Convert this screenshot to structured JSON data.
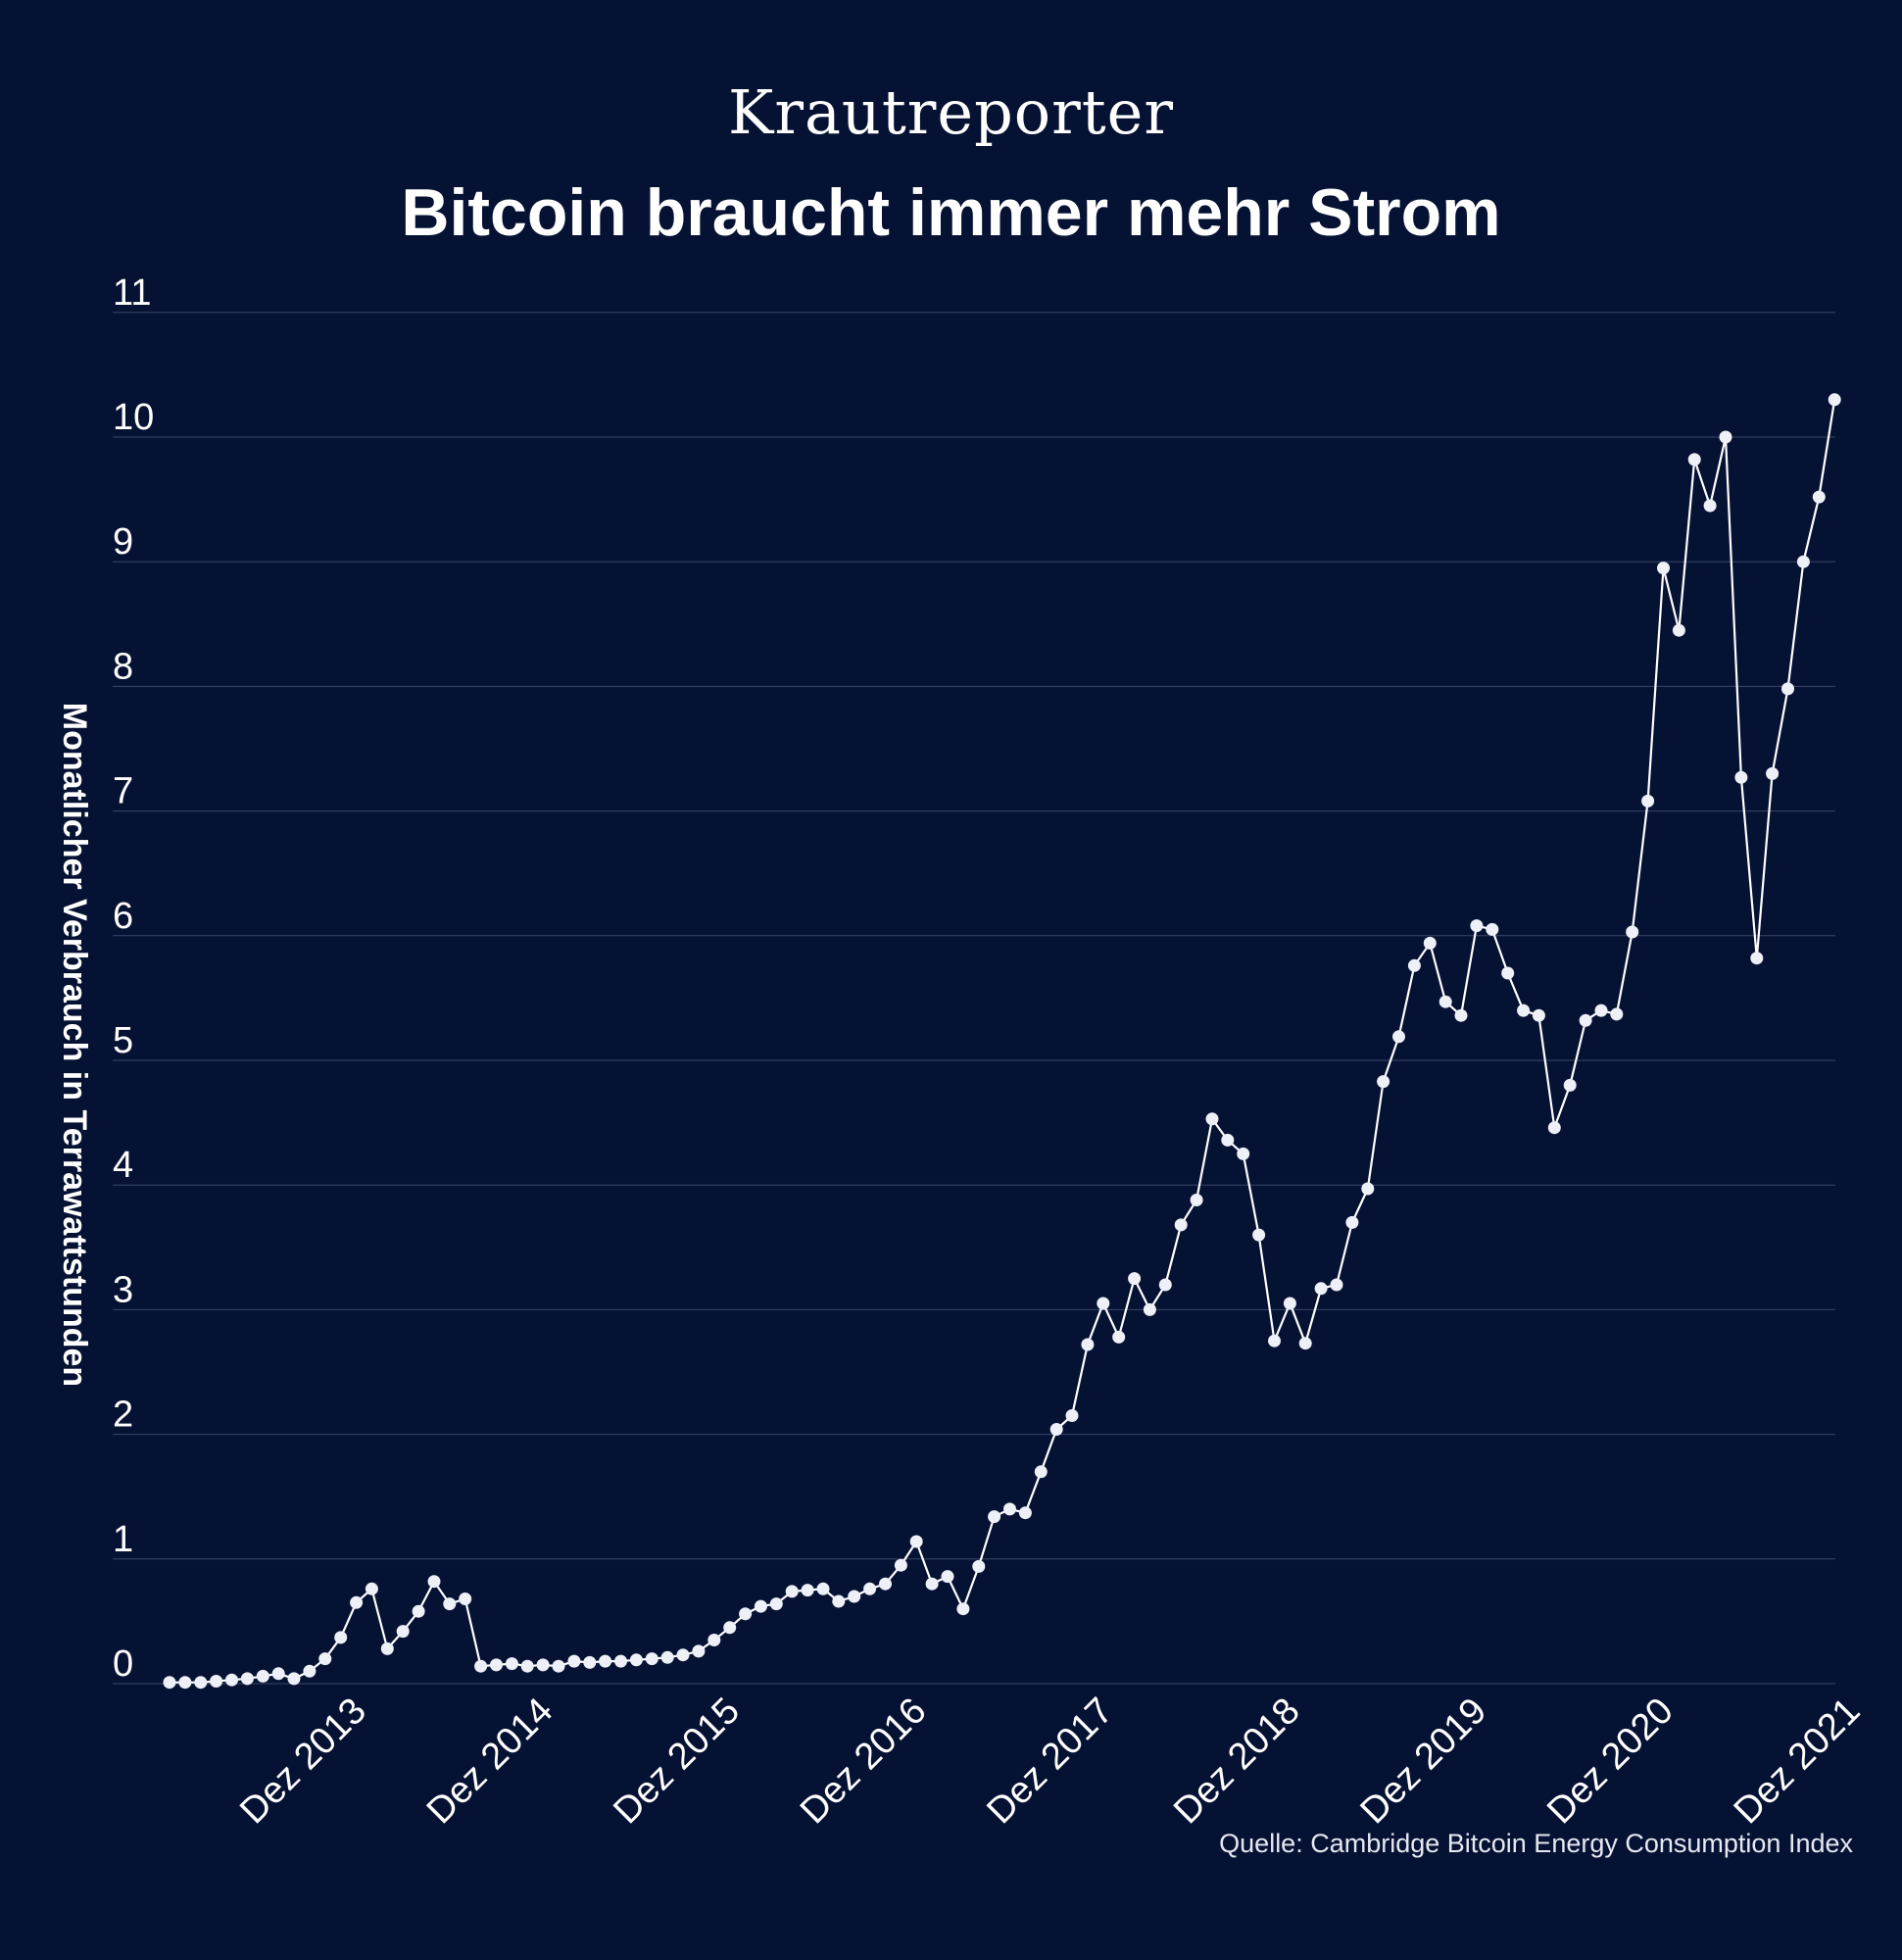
{
  "header": {
    "brand": "Krautreporter",
    "title": "Bitcoin braucht immer mehr Strom"
  },
  "footer": {
    "source": "Quelle: Cambridge Bitcoin Energy Consumption Index"
  },
  "colors": {
    "background": "#061233",
    "line": "#ffffff",
    "grid": "#3a4468"
  },
  "chart_data": {
    "type": "line",
    "title": "Bitcoin braucht immer mehr Strom",
    "xlabel": "",
    "ylabel": "Monatlicher Verbrauch in Terrawattstunden",
    "ylim": [
      0,
      11
    ],
    "yticks": [
      "0",
      "1",
      "2",
      "3",
      "4",
      "5",
      "6",
      "7",
      "8",
      "9",
      "10",
      "11"
    ],
    "xticks": [
      "Dez 2013",
      "Dez 2014",
      "Dez 2015",
      "Dez 2016",
      "Dez 2017",
      "Dez 2018",
      "Dez 2019",
      "Dez 2020",
      "Dez 2021"
    ],
    "grid": true,
    "x_start": "2012-12",
    "x_interval": "month",
    "series": [
      {
        "values": [
          0.01,
          0.01,
          0.01,
          0.02,
          0.03,
          0.04,
          0.06,
          0.08,
          0.04,
          0.1,
          0.2,
          0.37,
          0.65,
          0.76,
          0.28,
          0.42,
          0.58,
          0.82,
          0.64,
          0.68,
          0.14,
          0.15,
          0.16,
          0.14,
          0.15,
          0.14,
          0.18,
          0.17,
          0.18,
          0.18,
          0.19,
          0.2,
          0.21,
          0.23,
          0.26,
          0.35,
          0.45,
          0.56,
          0.62,
          0.64,
          0.74,
          0.75,
          0.76,
          0.66,
          0.7,
          0.76,
          0.8,
          0.95,
          1.14,
          0.8,
          0.86,
          0.6,
          0.94,
          1.34,
          1.4,
          1.37,
          1.7,
          2.04,
          2.15,
          2.72,
          3.05,
          2.78,
          3.25,
          3.0,
          3.2,
          3.68,
          3.88,
          4.53,
          4.36,
          4.25,
          3.6,
          2.75,
          3.05,
          2.73,
          3.17,
          3.2,
          3.7,
          3.97,
          4.83,
          5.19,
          5.76,
          5.94,
          5.47,
          5.36,
          6.08,
          6.05,
          5.7,
          5.4,
          5.36,
          4.46,
          4.8,
          5.32,
          5.4,
          5.37,
          6.03,
          7.08,
          8.95,
          8.45,
          9.82,
          9.45,
          10.0,
          7.27,
          5.82,
          7.3,
          7.98,
          9.0,
          9.52,
          10.3
        ]
      }
    ]
  }
}
